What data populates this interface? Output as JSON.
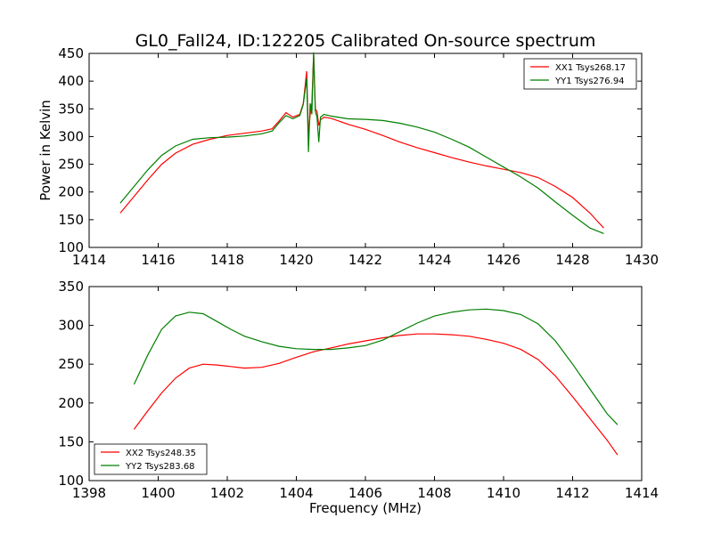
{
  "figure": {
    "title": "GL0_Fall24, ID:122205 Calibrated On-source spectrum",
    "ylabel": "Power in Kelvin",
    "xlabel": "Frequency (MHz)"
  },
  "colors": {
    "red": "#ff0000",
    "green": "#007f00"
  },
  "chart_data": [
    {
      "type": "line",
      "xlim": [
        1414,
        1430
      ],
      "ylim": [
        100,
        450
      ],
      "xticks": [
        1414,
        1416,
        1418,
        1420,
        1422,
        1424,
        1426,
        1428,
        1430
      ],
      "yticks": [
        100,
        150,
        200,
        250,
        300,
        350,
        400,
        450
      ],
      "legend_position": "top-right",
      "series": [
        {
          "name": "XX1 Tsys268.17",
          "color": "#ff0000",
          "x": [
            1414.9,
            1415.3,
            1415.7,
            1416.1,
            1416.5,
            1417.0,
            1417.5,
            1418.0,
            1418.5,
            1419.0,
            1419.3,
            1419.5,
            1419.7,
            1419.9,
            1420.1,
            1420.2,
            1420.3,
            1420.35,
            1420.4,
            1420.45,
            1420.5,
            1420.55,
            1420.6,
            1420.65,
            1420.7,
            1420.8,
            1421.0,
            1421.5,
            1422.0,
            1422.5,
            1423.0,
            1423.5,
            1424.0,
            1424.5,
            1425.0,
            1425.5,
            1426.0,
            1426.5,
            1427.0,
            1427.5,
            1428.0,
            1428.5,
            1428.9
          ],
          "y": [
            162,
            192,
            222,
            250,
            270,
            286,
            295,
            302,
            306,
            310,
            314,
            328,
            343,
            335,
            340,
            360,
            418,
            300,
            340,
            360,
            450,
            350,
            345,
            320,
            330,
            335,
            333,
            322,
            313,
            302,
            290,
            280,
            271,
            262,
            254,
            247,
            241,
            235,
            226,
            210,
            190,
            162,
            135
          ]
        },
        {
          "name": "YY1 Tsys276.94",
          "color": "#007f00",
          "x": [
            1414.9,
            1415.3,
            1415.7,
            1416.1,
            1416.5,
            1417.0,
            1417.5,
            1418.0,
            1418.5,
            1419.0,
            1419.3,
            1419.5,
            1419.7,
            1419.9,
            1420.1,
            1420.2,
            1420.3,
            1420.35,
            1420.4,
            1420.45,
            1420.5,
            1420.55,
            1420.6,
            1420.65,
            1420.7,
            1420.8,
            1421.0,
            1421.5,
            1422.0,
            1422.5,
            1423.0,
            1423.5,
            1424.0,
            1424.5,
            1425.0,
            1425.5,
            1426.0,
            1426.5,
            1427.0,
            1427.5,
            1428.0,
            1428.5,
            1428.9
          ],
          "y": [
            180,
            210,
            240,
            266,
            283,
            295,
            298,
            299,
            301,
            305,
            310,
            325,
            338,
            332,
            338,
            358,
            405,
            272,
            360,
            340,
            452,
            345,
            335,
            290,
            335,
            340,
            337,
            332,
            331,
            329,
            324,
            317,
            308,
            295,
            281,
            263,
            245,
            227,
            207,
            182,
            158,
            135,
            125
          ]
        }
      ]
    },
    {
      "type": "line",
      "xlim": [
        1398,
        1414
      ],
      "ylim": [
        100,
        350
      ],
      "xticks": [
        1398,
        1400,
        1402,
        1404,
        1406,
        1408,
        1410,
        1412,
        1414
      ],
      "yticks": [
        100,
        150,
        200,
        250,
        300,
        350
      ],
      "legend_position": "bottom-left",
      "series": [
        {
          "name": "XX2 Tsys248.35",
          "color": "#ff0000",
          "x": [
            1399.3,
            1399.7,
            1400.1,
            1400.5,
            1400.9,
            1401.3,
            1401.7,
            1402.1,
            1402.5,
            1403.0,
            1403.5,
            1404.0,
            1404.5,
            1405.0,
            1405.5,
            1406.0,
            1406.5,
            1407.0,
            1407.5,
            1408.0,
            1408.5,
            1409.0,
            1409.5,
            1410.0,
            1410.5,
            1411.0,
            1411.5,
            1412.0,
            1412.5,
            1413.0,
            1413.3
          ],
          "y": [
            166,
            190,
            213,
            232,
            245,
            250,
            249,
            247,
            245,
            246,
            251,
            259,
            266,
            271,
            276,
            280,
            284,
            287,
            289,
            289,
            288,
            286,
            282,
            277,
            269,
            256,
            235,
            208,
            180,
            152,
            133
          ]
        },
        {
          "name": "YY2 Tsys283.68",
          "color": "#007f00",
          "x": [
            1399.3,
            1399.7,
            1400.1,
            1400.5,
            1400.9,
            1401.3,
            1401.7,
            1402.1,
            1402.5,
            1403.0,
            1403.5,
            1404.0,
            1404.5,
            1405.0,
            1405.5,
            1406.0,
            1406.5,
            1407.0,
            1407.5,
            1408.0,
            1408.5,
            1409.0,
            1409.5,
            1410.0,
            1410.5,
            1411.0,
            1411.5,
            1412.0,
            1412.5,
            1413.0,
            1413.3
          ],
          "y": [
            224,
            262,
            295,
            312,
            317,
            315,
            305,
            295,
            286,
            279,
            273,
            270,
            269,
            269,
            271,
            274,
            281,
            292,
            303,
            312,
            317,
            320,
            321,
            319,
            314,
            302,
            280,
            250,
            218,
            186,
            172
          ]
        }
      ]
    }
  ]
}
